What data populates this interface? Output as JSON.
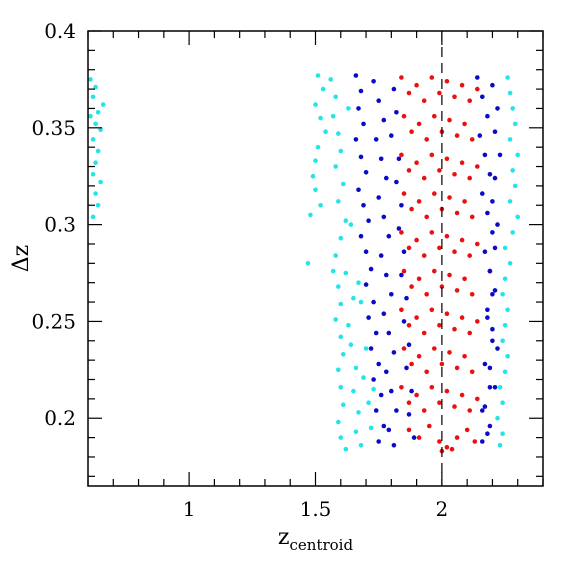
{
  "chart_data": {
    "type": "scatter",
    "title": "",
    "xlabel_main": "z",
    "xlabel_sub": "centroid",
    "ylabel": "Δz",
    "xlim": [
      0.6,
      2.4
    ],
    "ylim": [
      0.165,
      0.4
    ],
    "x_ticks": [
      {
        "value": 1.0,
        "label": "1"
      },
      {
        "value": 1.5,
        "label": "1.5"
      },
      {
        "value": 2.0,
        "label": "2"
      }
    ],
    "y_ticks": [
      {
        "value": 0.2,
        "label": "0.2"
      },
      {
        "value": 0.25,
        "label": "0.25"
      },
      {
        "value": 0.3,
        "label": "0.3"
      },
      {
        "value": 0.35,
        "label": "0.35"
      },
      {
        "value": 0.4,
        "label": "0.4"
      }
    ],
    "reference_line": {
      "x": 2.0,
      "style": "dashed"
    },
    "grid": false,
    "legend": "none",
    "series": [
      {
        "color": "#22e5e8",
        "points": [
          [
            0.61,
            0.375
          ],
          [
            0.62,
            0.366
          ],
          [
            0.64,
            0.358
          ],
          [
            0.63,
            0.352
          ],
          [
            0.65,
            0.349
          ],
          [
            0.62,
            0.344
          ],
          [
            0.64,
            0.338
          ],
          [
            0.63,
            0.332
          ],
          [
            0.62,
            0.326
          ],
          [
            0.65,
            0.322
          ],
          [
            0.63,
            0.316
          ],
          [
            0.64,
            0.31
          ],
          [
            0.62,
            0.304
          ],
          [
            0.63,
            0.371
          ],
          [
            0.66,
            0.362
          ],
          [
            0.61,
            0.356
          ],
          [
            1.51,
            0.377
          ],
          [
            1.53,
            0.37
          ],
          [
            1.5,
            0.362
          ],
          [
            1.52,
            0.355
          ],
          [
            1.54,
            0.348
          ],
          [
            1.51,
            0.34
          ],
          [
            1.5,
            0.333
          ],
          [
            1.49,
            0.325
          ],
          [
            1.5,
            0.318
          ],
          [
            1.52,
            0.31
          ],
          [
            1.48,
            0.305
          ],
          [
            1.47,
            0.28
          ],
          [
            1.56,
            0.375
          ],
          [
            1.58,
            0.366
          ],
          [
            1.57,
            0.356
          ],
          [
            1.59,
            0.347
          ],
          [
            1.6,
            0.338
          ],
          [
            1.58,
            0.33
          ],
          [
            1.61,
            0.321
          ],
          [
            1.59,
            0.312
          ],
          [
            1.62,
            0.302
          ],
          [
            1.6,
            0.293
          ],
          [
            1.58,
            0.284
          ],
          [
            1.57,
            0.276
          ],
          [
            1.59,
            0.268
          ],
          [
            1.6,
            0.259
          ],
          [
            1.58,
            0.251
          ],
          [
            1.6,
            0.242
          ],
          [
            1.61,
            0.233
          ],
          [
            1.59,
            0.225
          ],
          [
            1.6,
            0.216
          ],
          [
            1.61,
            0.207
          ],
          [
            1.59,
            0.198
          ],
          [
            1.6,
            0.19
          ],
          [
            1.62,
            0.184
          ],
          [
            1.63,
            0.36
          ],
          [
            1.64,
            0.3
          ],
          [
            1.62,
            0.275
          ],
          [
            1.65,
            0.262
          ],
          [
            1.63,
            0.248
          ],
          [
            1.64,
            0.238
          ],
          [
            1.66,
            0.226
          ],
          [
            1.65,
            0.214
          ],
          [
            1.67,
            0.203
          ],
          [
            1.66,
            0.193
          ],
          [
            1.68,
            0.186
          ],
          [
            1.69,
            0.221
          ],
          [
            1.7,
            0.236
          ],
          [
            1.71,
            0.208
          ],
          [
            1.72,
            0.195
          ],
          [
            1.73,
            0.215
          ],
          [
            1.68,
            0.26
          ],
          [
            1.67,
            0.27
          ],
          [
            2.26,
            0.376
          ],
          [
            2.27,
            0.368
          ],
          [
            2.28,
            0.36
          ],
          [
            2.29,
            0.352
          ],
          [
            2.27,
            0.344
          ],
          [
            2.3,
            0.336
          ],
          [
            2.28,
            0.328
          ],
          [
            2.29,
            0.32
          ],
          [
            2.27,
            0.312
          ],
          [
            2.3,
            0.304
          ],
          [
            2.28,
            0.296
          ],
          [
            2.25,
            0.288
          ],
          [
            2.27,
            0.28
          ],
          [
            2.25,
            0.272
          ],
          [
            2.24,
            0.264
          ],
          [
            2.26,
            0.256
          ],
          [
            2.25,
            0.248
          ],
          [
            2.24,
            0.24
          ],
          [
            2.26,
            0.232
          ],
          [
            2.25,
            0.224
          ],
          [
            2.23,
            0.216
          ],
          [
            2.24,
            0.208
          ],
          [
            2.22,
            0.2
          ],
          [
            2.24,
            0.192
          ],
          [
            2.23,
            0.186
          ]
        ]
      },
      {
        "color": "#0a0ac8",
        "points": [
          [
            1.66,
            0.377
          ],
          [
            1.68,
            0.369
          ],
          [
            1.67,
            0.36
          ],
          [
            1.69,
            0.352
          ],
          [
            1.66,
            0.344
          ],
          [
            1.68,
            0.335
          ],
          [
            1.7,
            0.327
          ],
          [
            1.67,
            0.318
          ],
          [
            1.69,
            0.31
          ],
          [
            1.71,
            0.302
          ],
          [
            1.68,
            0.294
          ],
          [
            1.7,
            0.286
          ],
          [
            1.72,
            0.277
          ],
          [
            1.7,
            0.269
          ],
          [
            1.73,
            0.26
          ],
          [
            1.71,
            0.252
          ],
          [
            1.74,
            0.244
          ],
          [
            1.72,
            0.236
          ],
          [
            1.75,
            0.228
          ],
          [
            1.73,
            0.22
          ],
          [
            1.76,
            0.212
          ],
          [
            1.74,
            0.204
          ],
          [
            1.77,
            0.196
          ],
          [
            1.75,
            0.188
          ],
          [
            1.73,
            0.374
          ],
          [
            1.75,
            0.364
          ],
          [
            1.77,
            0.354
          ],
          [
            1.74,
            0.344
          ],
          [
            1.76,
            0.334
          ],
          [
            1.78,
            0.324
          ],
          [
            1.75,
            0.314
          ],
          [
            1.77,
            0.304
          ],
          [
            1.79,
            0.294
          ],
          [
            1.76,
            0.284
          ],
          [
            1.78,
            0.274
          ],
          [
            1.8,
            0.264
          ],
          [
            1.77,
            0.254
          ],
          [
            1.79,
            0.244
          ],
          [
            1.81,
            0.234
          ],
          [
            1.78,
            0.224
          ],
          [
            1.8,
            0.214
          ],
          [
            1.82,
            0.204
          ],
          [
            1.79,
            0.194
          ],
          [
            1.81,
            0.186
          ],
          [
            1.81,
            0.37
          ],
          [
            1.82,
            0.358
          ],
          [
            1.8,
            0.346
          ],
          [
            1.83,
            0.334
          ],
          [
            1.82,
            0.322
          ],
          [
            1.84,
            0.31
          ],
          [
            1.83,
            0.298
          ],
          [
            1.85,
            0.286
          ],
          [
            1.84,
            0.274
          ],
          [
            1.86,
            0.262
          ],
          [
            1.85,
            0.25
          ],
          [
            1.87,
            0.238
          ],
          [
            1.86,
            0.226
          ],
          [
            1.88,
            0.214
          ],
          [
            1.87,
            0.202
          ],
          [
            1.89,
            0.19
          ],
          [
            2.14,
            0.376
          ],
          [
            2.16,
            0.366
          ],
          [
            2.18,
            0.356
          ],
          [
            2.15,
            0.346
          ],
          [
            2.17,
            0.336
          ],
          [
            2.19,
            0.326
          ],
          [
            2.16,
            0.316
          ],
          [
            2.18,
            0.306
          ],
          [
            2.2,
            0.296
          ],
          [
            2.17,
            0.286
          ],
          [
            2.19,
            0.276
          ],
          [
            2.21,
            0.266
          ],
          [
            2.18,
            0.256
          ],
          [
            2.2,
            0.246
          ],
          [
            2.22,
            0.236
          ],
          [
            2.19,
            0.226
          ],
          [
            2.21,
            0.216
          ],
          [
            2.17,
            0.206
          ],
          [
            2.19,
            0.196
          ],
          [
            2.16,
            0.188
          ],
          [
            2.2,
            0.372
          ],
          [
            2.22,
            0.36
          ],
          [
            2.21,
            0.348
          ],
          [
            2.23,
            0.336
          ],
          [
            2.21,
            0.324
          ],
          [
            2.2,
            0.312
          ],
          [
            2.22,
            0.3
          ],
          [
            2.21,
            0.288
          ],
          [
            2.19,
            0.276
          ],
          [
            2.2,
            0.264
          ],
          [
            2.18,
            0.252
          ],
          [
            2.2,
            0.24
          ],
          [
            2.17,
            0.228
          ],
          [
            2.19,
            0.216
          ],
          [
            2.16,
            0.204
          ],
          [
            2.18,
            0.192
          ]
        ]
      },
      {
        "color": "#e81010",
        "points": [
          [
            1.84,
            0.376
          ],
          [
            1.87,
            0.368
          ],
          [
            1.9,
            0.372
          ],
          [
            1.93,
            0.364
          ],
          [
            1.96,
            0.376
          ],
          [
            1.99,
            0.368
          ],
          [
            2.02,
            0.374
          ],
          [
            2.05,
            0.366
          ],
          [
            2.08,
            0.372
          ],
          [
            2.11,
            0.364
          ],
          [
            2.14,
            0.37
          ],
          [
            1.85,
            0.356
          ],
          [
            1.88,
            0.348
          ],
          [
            1.91,
            0.352
          ],
          [
            1.94,
            0.344
          ],
          [
            1.97,
            0.356
          ],
          [
            2.0,
            0.348
          ],
          [
            2.03,
            0.354
          ],
          [
            2.06,
            0.346
          ],
          [
            2.09,
            0.352
          ],
          [
            2.12,
            0.344
          ],
          [
            1.84,
            0.336
          ],
          [
            1.87,
            0.328
          ],
          [
            1.9,
            0.332
          ],
          [
            1.93,
            0.324
          ],
          [
            1.96,
            0.336
          ],
          [
            1.99,
            0.328
          ],
          [
            2.02,
            0.334
          ],
          [
            2.05,
            0.326
          ],
          [
            2.08,
            0.332
          ],
          [
            2.11,
            0.324
          ],
          [
            2.14,
            0.33
          ],
          [
            1.85,
            0.316
          ],
          [
            1.88,
            0.308
          ],
          [
            1.91,
            0.312
          ],
          [
            1.94,
            0.304
          ],
          [
            1.97,
            0.316
          ],
          [
            2.0,
            0.308
          ],
          [
            2.03,
            0.314
          ],
          [
            2.06,
            0.306
          ],
          [
            2.09,
            0.312
          ],
          [
            2.12,
            0.304
          ],
          [
            1.84,
            0.296
          ],
          [
            1.87,
            0.288
          ],
          [
            1.9,
            0.292
          ],
          [
            1.93,
            0.284
          ],
          [
            1.96,
            0.296
          ],
          [
            1.99,
            0.288
          ],
          [
            2.02,
            0.294
          ],
          [
            2.05,
            0.286
          ],
          [
            2.08,
            0.292
          ],
          [
            2.11,
            0.284
          ],
          [
            2.14,
            0.29
          ],
          [
            1.85,
            0.276
          ],
          [
            1.88,
            0.268
          ],
          [
            1.91,
            0.272
          ],
          [
            1.94,
            0.264
          ],
          [
            1.97,
            0.276
          ],
          [
            2.0,
            0.268
          ],
          [
            2.03,
            0.274
          ],
          [
            2.06,
            0.266
          ],
          [
            2.09,
            0.272
          ],
          [
            2.12,
            0.264
          ],
          [
            1.84,
            0.256
          ],
          [
            1.87,
            0.248
          ],
          [
            1.9,
            0.252
          ],
          [
            1.93,
            0.244
          ],
          [
            1.96,
            0.256
          ],
          [
            1.99,
            0.248
          ],
          [
            2.02,
            0.254
          ],
          [
            2.05,
            0.246
          ],
          [
            2.08,
            0.252
          ],
          [
            2.11,
            0.244
          ],
          [
            2.14,
            0.25
          ],
          [
            1.85,
            0.236
          ],
          [
            1.88,
            0.228
          ],
          [
            1.91,
            0.232
          ],
          [
            1.94,
            0.224
          ],
          [
            1.97,
            0.236
          ],
          [
            2.0,
            0.228
          ],
          [
            2.03,
            0.234
          ],
          [
            2.06,
            0.226
          ],
          [
            2.09,
            0.232
          ],
          [
            2.12,
            0.224
          ],
          [
            1.84,
            0.216
          ],
          [
            1.87,
            0.208
          ],
          [
            1.9,
            0.212
          ],
          [
            1.93,
            0.204
          ],
          [
            1.96,
            0.216
          ],
          [
            1.99,
            0.208
          ],
          [
            2.02,
            0.214
          ],
          [
            2.05,
            0.206
          ],
          [
            2.08,
            0.212
          ],
          [
            2.11,
            0.204
          ],
          [
            2.14,
            0.21
          ],
          [
            1.87,
            0.194
          ],
          [
            1.91,
            0.19
          ],
          [
            1.95,
            0.196
          ],
          [
            1.99,
            0.188
          ],
          [
            2.0,
            0.183
          ],
          [
            2.02,
            0.185
          ],
          [
            2.04,
            0.184
          ],
          [
            2.06,
            0.19
          ],
          [
            2.1,
            0.194
          ],
          [
            2.13,
            0.188
          ]
        ]
      }
    ]
  }
}
